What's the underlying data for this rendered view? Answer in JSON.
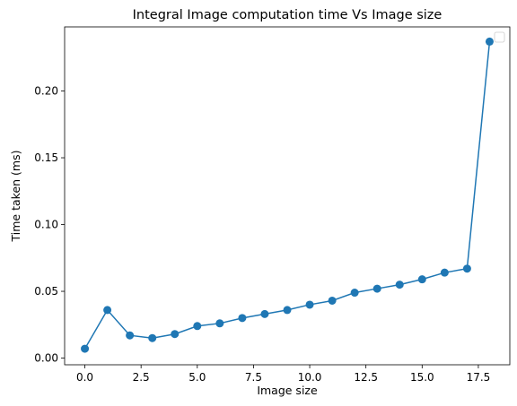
{
  "chart_data": {
    "type": "line",
    "title": "Integral Image computation time Vs Image size",
    "xlabel": "Image size",
    "ylabel": "Time taken (ms)",
    "xlim": [
      -0.9,
      18.9
    ],
    "ylim": [
      -0.005,
      0.248
    ],
    "x_ticks": [
      0.0,
      2.5,
      5.0,
      7.5,
      10.0,
      12.5,
      15.0,
      17.5
    ],
    "x_tick_labels": [
      "0.0",
      "2.5",
      "5.0",
      "7.5",
      "10.0",
      "12.5",
      "15.0",
      "17.5"
    ],
    "y_ticks": [
      0.0,
      0.05,
      0.1,
      0.15,
      0.2
    ],
    "y_tick_labels": [
      "0.00",
      "0.05",
      "0.10",
      "0.15",
      "0.20"
    ],
    "grid": false,
    "legend": "upper right (empty)",
    "series": [
      {
        "color": "#1f77b4",
        "marker": "circle",
        "x": [
          0,
          1,
          2,
          3,
          4,
          5,
          6,
          7,
          8,
          9,
          10,
          11,
          12,
          13,
          14,
          15,
          16,
          17,
          18
        ],
        "values": [
          0.007,
          0.036,
          0.017,
          0.015,
          0.018,
          0.024,
          0.026,
          0.03,
          0.033,
          0.036,
          0.04,
          0.043,
          0.049,
          0.052,
          0.055,
          0.059,
          0.064,
          0.067,
          0.237
        ]
      }
    ]
  }
}
